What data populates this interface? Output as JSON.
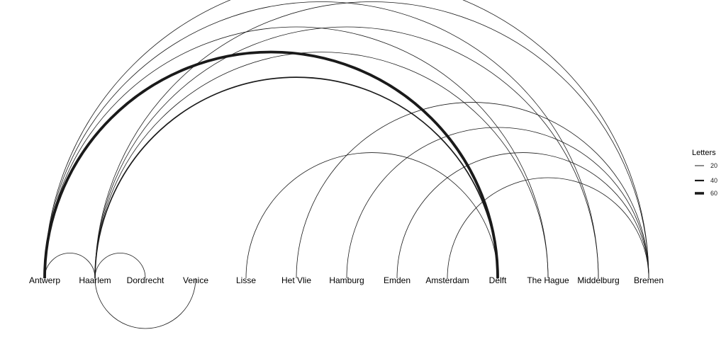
{
  "legend": {
    "title": "Letters",
    "entries": [
      {
        "label": "20",
        "value": 20
      },
      {
        "label": "40",
        "value": 40
      },
      {
        "label": "60",
        "value": 60
      }
    ]
  },
  "colors": {
    "arc": "#1a1a1a",
    "background": "#ffffff"
  },
  "nodes": [
    "Antwerp",
    "Haarlem",
    "Dordrecht",
    "Venice",
    "Lisse",
    "Het Vlie",
    "Hamburg",
    "Emden",
    "Amsterdam",
    "Delft",
    "The Hague",
    "Middelburg",
    "Bremen"
  ],
  "edges": [
    {
      "source": "Antwerp",
      "target": "Delft",
      "letters": 72
    },
    {
      "source": "Haarlem",
      "target": "Delft",
      "letters": 24
    },
    {
      "source": "Antwerp",
      "target": "Haarlem",
      "letters": 3
    },
    {
      "source": "Haarlem",
      "target": "Dordrecht",
      "letters": 2
    },
    {
      "source": "Haarlem",
      "target": "Venice",
      "letters": 2
    },
    {
      "source": "Antwerp",
      "target": "Bremen",
      "letters": 4
    },
    {
      "source": "Antwerp",
      "target": "Middelburg",
      "letters": 3
    },
    {
      "source": "Antwerp",
      "target": "The Hague",
      "letters": 3
    },
    {
      "source": "Haarlem",
      "target": "Bremen",
      "letters": 4
    },
    {
      "source": "Haarlem",
      "target": "Middelburg",
      "letters": 3
    },
    {
      "source": "Haarlem",
      "target": "The Hague",
      "letters": 3
    },
    {
      "source": "Lisse",
      "target": "Delft",
      "letters": 2
    },
    {
      "source": "Het Vlie",
      "target": "Bremen",
      "letters": 2
    },
    {
      "source": "Hamburg",
      "target": "Bremen",
      "letters": 2
    },
    {
      "source": "Emden",
      "target": "Bremen",
      "letters": 2
    },
    {
      "source": "Amsterdam",
      "target": "Bremen",
      "letters": 2
    }
  ]
}
